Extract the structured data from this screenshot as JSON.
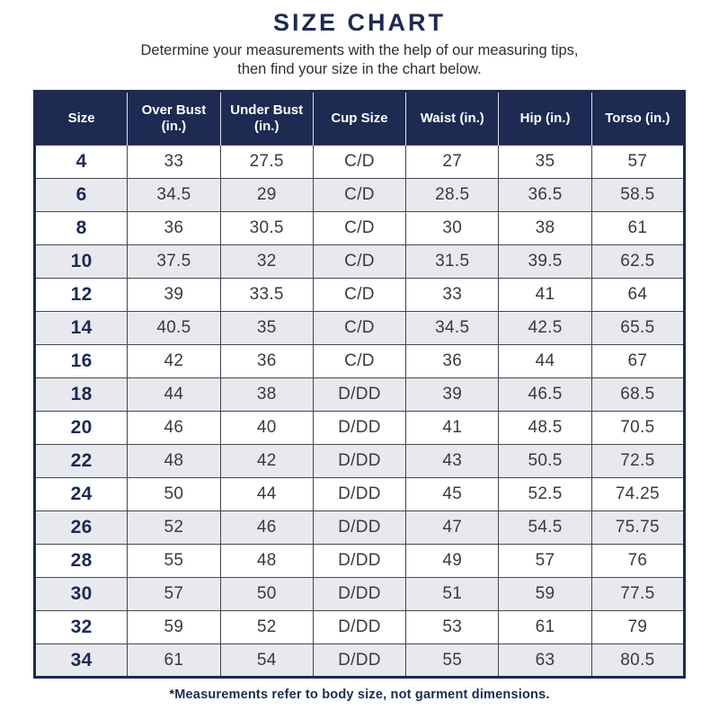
{
  "page": {
    "title": "SIZE CHART",
    "subtitle_line1": "Determine your measurements with the help of our measuring tips,",
    "subtitle_line2": "then find your size in the chart below.",
    "footnote": "*Measurements refer to body size, not garment dimensions."
  },
  "colors": {
    "navy": "#1d2a52",
    "row_alt": "#e8e9ee",
    "body_text": "#3a3a3e",
    "grid_line": "#45454c",
    "header_text": "#ffffff"
  },
  "chart_data": {
    "type": "table",
    "title": "SIZE CHART",
    "columns": [
      "Size",
      "Over Bust (in.)",
      "Under Bust (in.)",
      "Cup Size",
      "Waist (in.)",
      "Hip (in.)",
      "Torso (in.)"
    ],
    "rows": [
      [
        "4",
        "33",
        "27.5",
        "C/D",
        "27",
        "35",
        "57"
      ],
      [
        "6",
        "34.5",
        "29",
        "C/D",
        "28.5",
        "36.5",
        "58.5"
      ],
      [
        "8",
        "36",
        "30.5",
        "C/D",
        "30",
        "38",
        "61"
      ],
      [
        "10",
        "37.5",
        "32",
        "C/D",
        "31.5",
        "39.5",
        "62.5"
      ],
      [
        "12",
        "39",
        "33.5",
        "C/D",
        "33",
        "41",
        "64"
      ],
      [
        "14",
        "40.5",
        "35",
        "C/D",
        "34.5",
        "42.5",
        "65.5"
      ],
      [
        "16",
        "42",
        "36",
        "C/D",
        "36",
        "44",
        "67"
      ],
      [
        "18",
        "44",
        "38",
        "D/DD",
        "39",
        "46.5",
        "68.5"
      ],
      [
        "20",
        "46",
        "40",
        "D/DD",
        "41",
        "48.5",
        "70.5"
      ],
      [
        "22",
        "48",
        "42",
        "D/DD",
        "43",
        "50.5",
        "72.5"
      ],
      [
        "24",
        "50",
        "44",
        "D/DD",
        "45",
        "52.5",
        "74.25"
      ],
      [
        "26",
        "52",
        "46",
        "D/DD",
        "47",
        "54.5",
        "75.75"
      ],
      [
        "28",
        "55",
        "48",
        "D/DD",
        "49",
        "57",
        "76"
      ],
      [
        "30",
        "57",
        "50",
        "D/DD",
        "51",
        "59",
        "77.5"
      ],
      [
        "32",
        "59",
        "52",
        "D/DD",
        "53",
        "61",
        "79"
      ],
      [
        "34",
        "61",
        "54",
        "D/DD",
        "55",
        "63",
        "80.5"
      ]
    ]
  }
}
